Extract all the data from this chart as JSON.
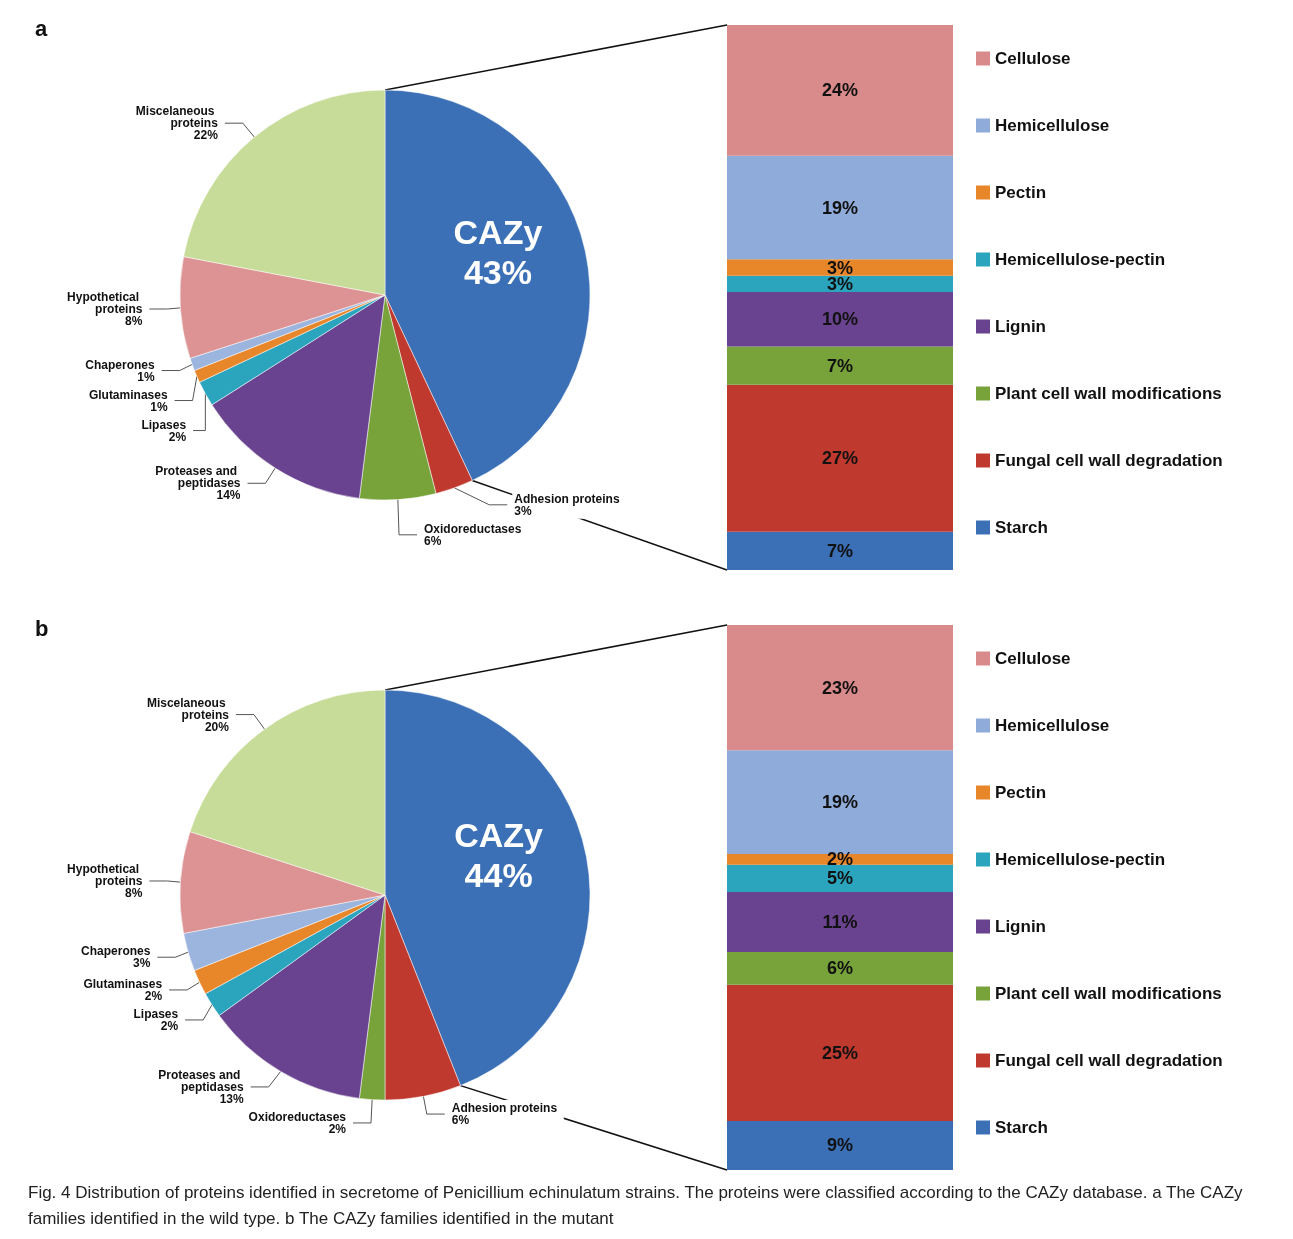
{
  "chart_data": [
    {
      "type": "pie",
      "title": "a",
      "categories": [
        "CAZy",
        "Adhesion proteins",
        "Oxidoreductases",
        "Proteases and peptidases",
        "Lipases",
        "Glutaminases",
        "Chaperones",
        "Hypothetical proteins",
        "Miscelaneous proteins"
      ],
      "values": [
        43,
        3,
        6,
        14,
        2,
        1,
        1,
        8,
        22
      ],
      "value_labels": [
        "43%",
        "3%",
        "6%",
        "14%",
        "2%",
        "1%",
        "1%",
        "8%",
        "22%"
      ],
      "colors": [
        "#3b70b6",
        "#c0392f",
        "#78a33b",
        "#6a4390",
        "#2ba5be",
        "#e8862a",
        "#9cb5de",
        "#dd9393",
        "#c6dc98"
      ],
      "annotations": [
        "Fig. 4 Distribution of proteins identified in secretome of Penicillium echinulatum strains. The proteins were classified according to the CAZy database. a The CAZy families identified in the wild type. b The CAZy families identified in the mutant"
      ]
    },
    {
      "type": "bar",
      "stacked": true,
      "legend": "right",
      "categories": [
        null
      ],
      "series": [
        {
          "name": "Starch",
          "color": "#3b70b6",
          "values": [
            7
          ],
          "value_labels": [
            "7%"
          ]
        },
        {
          "name": "Fungal cell wall degradation",
          "color": "#c0392f",
          "values": [
            27
          ],
          "value_labels": [
            "27%"
          ]
        },
        {
          "name": "Plant cell wall modifications",
          "color": "#78a33b",
          "values": [
            7
          ],
          "value_labels": [
            "7%"
          ]
        },
        {
          "name": "Lignin",
          "color": "#6a4390",
          "values": [
            10
          ],
          "value_labels": [
            "10%"
          ]
        },
        {
          "name": "Hemicellulose-pectin",
          "color": "#2ba5be",
          "values": [
            3
          ],
          "value_labels": [
            "3%"
          ]
        },
        {
          "name": "Pectin",
          "color": "#e8862a",
          "values": [
            3
          ],
          "value_labels": [
            "3%"
          ]
        },
        {
          "name": "Hemicellulose",
          "color": "#8fabd9",
          "values": [
            19
          ],
          "value_labels": [
            "19%"
          ]
        },
        {
          "name": "Cellulose",
          "color": "#d98a8a",
          "values": [
            24
          ],
          "value_labels": [
            "24%"
          ]
        }
      ]
    },
    {
      "type": "pie",
      "title": "b",
      "categories": [
        "CAZy",
        "Adhesion proteins",
        "Oxidoreductases",
        "Proteases and peptidases",
        "Lipases",
        "Glutaminases",
        "Chaperones",
        "Hypothetical proteins",
        "Miscelaneous proteins"
      ],
      "values": [
        44,
        6,
        2,
        13,
        2,
        2,
        3,
        8,
        20
      ],
      "value_labels": [
        "44%",
        "6%",
        "2%",
        "13%",
        "2%",
        "2%",
        "3%",
        "8%",
        "20%"
      ],
      "colors": [
        "#3b70b6",
        "#c0392f",
        "#78a33b",
        "#6a4390",
        "#2ba5be",
        "#e8862a",
        "#9cb5de",
        "#dd9393",
        "#c6dc98"
      ]
    },
    {
      "type": "bar",
      "stacked": true,
      "legend": "right",
      "categories": [
        null
      ],
      "series": [
        {
          "name": "Starch",
          "color": "#3b70b6",
          "values": [
            9
          ],
          "value_labels": [
            "9%"
          ]
        },
        {
          "name": "Fungal cell wall degradation",
          "color": "#c0392f",
          "values": [
            25
          ],
          "value_labels": [
            "25%"
          ]
        },
        {
          "name": "Plant cell wall modifications",
          "color": "#78a33b",
          "values": [
            6
          ],
          "value_labels": [
            "6%"
          ]
        },
        {
          "name": "Lignin",
          "color": "#6a4390",
          "values": [
            11
          ],
          "value_labels": [
            "11%"
          ]
        },
        {
          "name": "Hemicellulose-pectin",
          "color": "#2ba5be",
          "values": [
            5
          ],
          "value_labels": [
            "5%"
          ]
        },
        {
          "name": "Pectin",
          "color": "#e8862a",
          "values": [
            2
          ],
          "value_labels": [
            "2%"
          ]
        },
        {
          "name": "Hemicellulose",
          "color": "#8fabd9",
          "values": [
            19
          ],
          "value_labels": [
            "19%"
          ]
        },
        {
          "name": "Cellulose",
          "color": "#d98a8a",
          "values": [
            23
          ],
          "value_labels": [
            "23%"
          ]
        }
      ]
    }
  ]
}
